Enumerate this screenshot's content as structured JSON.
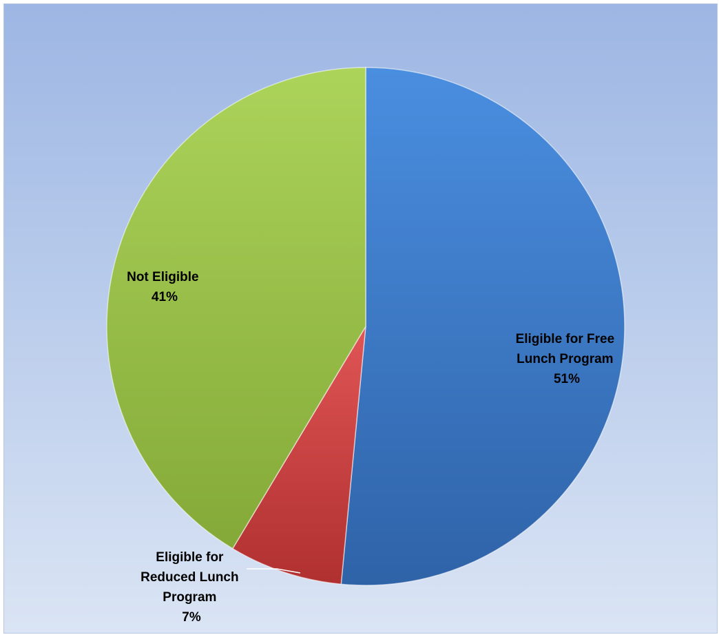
{
  "chart_data": {
    "type": "pie",
    "title": "",
    "slices": [
      {
        "name": "Eligible for Free Lunch Program",
        "value": 51,
        "percent_label": "51%",
        "label_lines": [
          "Eligible for Free",
          "Lunch Program"
        ],
        "color": "#3f7fd0"
      },
      {
        "name": "Eligible for Reduced Lunch Program",
        "value": 7,
        "percent_label": "7%",
        "label_lines": [
          "Eligible for",
          "Reduced Lunch",
          "Program"
        ],
        "color": "#cc4040"
      },
      {
        "name": "Not Eligible",
        "value": 41,
        "percent_label": "41%",
        "label_lines": [
          "Not Eligible"
        ],
        "color": "#9cc63f"
      }
    ],
    "start_angle": "12 o'clock",
    "direction": "clockwise",
    "legend": "none",
    "data_labels": "category name and percentage"
  }
}
